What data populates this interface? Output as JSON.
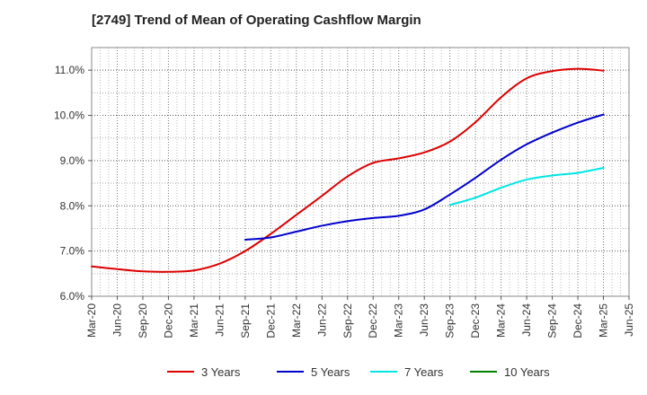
{
  "chart_data": {
    "type": "line",
    "title": "[2749]  Trend of Mean of Operating Cashflow Margin",
    "xlabel": "",
    "ylabel": "",
    "ylim": [
      6.0,
      11.5
    ],
    "y_ticks": [
      6.0,
      7.0,
      8.0,
      9.0,
      10.0,
      11.0
    ],
    "y_tick_labels": [
      "6.0%",
      "7.0%",
      "8.0%",
      "9.0%",
      "10.0%",
      "11.0%"
    ],
    "categories": [
      "Mar-20",
      "Jun-20",
      "Sep-20",
      "Dec-20",
      "Mar-21",
      "Jun-21",
      "Sep-21",
      "Dec-21",
      "Mar-22",
      "Jun-22",
      "Sep-22",
      "Dec-22",
      "Mar-23",
      "Jun-23",
      "Sep-23",
      "Dec-23",
      "Mar-24",
      "Jun-24",
      "Sep-24",
      "Dec-24",
      "Mar-25",
      "Jun-25"
    ],
    "grid": true,
    "legend_position": "bottom",
    "series": [
      {
        "name": "3 Years",
        "color": "#dd0000",
        "values": [
          6.66,
          6.6,
          6.55,
          6.54,
          6.57,
          6.72,
          7.0,
          7.38,
          7.8,
          8.22,
          8.65,
          8.95,
          9.05,
          9.18,
          9.42,
          9.85,
          10.4,
          10.82,
          10.98,
          11.03,
          10.99,
          null
        ]
      },
      {
        "name": "5 Years",
        "color": "#0000cc",
        "values": [
          null,
          null,
          null,
          null,
          null,
          null,
          7.25,
          7.3,
          7.43,
          7.56,
          7.66,
          7.73,
          7.78,
          7.92,
          8.25,
          8.62,
          9.02,
          9.36,
          9.62,
          9.84,
          10.02,
          null
        ]
      },
      {
        "name": "7 Years",
        "color": "#00e5e5",
        "values": [
          null,
          null,
          null,
          null,
          null,
          null,
          null,
          null,
          null,
          null,
          null,
          null,
          null,
          null,
          8.02,
          8.18,
          8.4,
          8.58,
          8.67,
          8.73,
          8.84,
          null
        ]
      },
      {
        "name": "10 Years",
        "color": "#008000",
        "values": [
          null,
          null,
          null,
          null,
          null,
          null,
          null,
          null,
          null,
          null,
          null,
          null,
          null,
          null,
          null,
          null,
          null,
          null,
          null,
          null,
          null,
          null
        ]
      }
    ]
  }
}
